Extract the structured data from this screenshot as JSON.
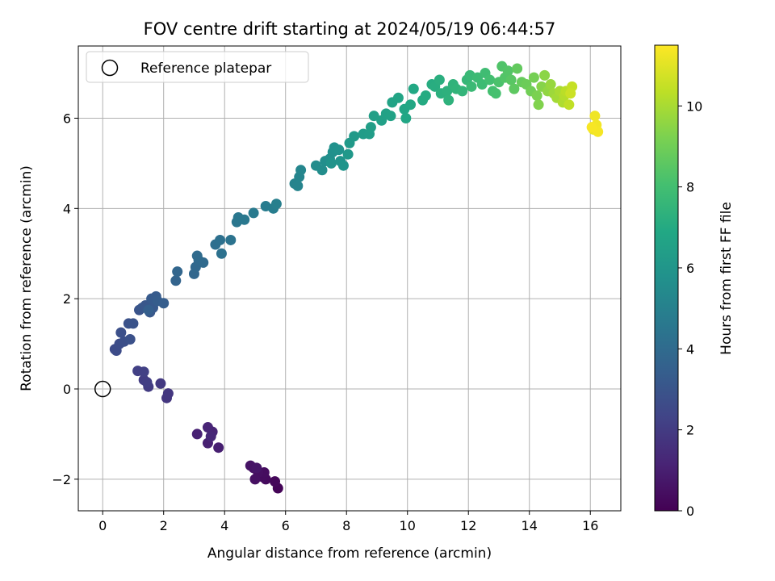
{
  "chart_data": {
    "type": "scatter",
    "title": "FOV centre drift starting at 2024/05/19 06:44:57",
    "xlabel": "Angular distance from reference (arcmin)",
    "ylabel": "Rotation from reference (arcmin)",
    "colorbar_label": "Hours from first FF file",
    "colormap": "viridis",
    "xlim": [
      -0.8,
      17.0
    ],
    "ylim": [
      -2.7,
      7.6
    ],
    "clim": [
      0,
      11.5
    ],
    "xticks": [
      0,
      2,
      4,
      6,
      8,
      10,
      12,
      14,
      16
    ],
    "yticks": [
      -2,
      0,
      2,
      4,
      6
    ],
    "cticks": [
      0,
      2,
      4,
      6,
      8,
      10
    ],
    "grid": true,
    "legend": {
      "position": "top-left",
      "entries": [
        {
          "label": "Reference platepar",
          "marker": "open-circle"
        }
      ]
    },
    "reference_point": {
      "x": 0,
      "y": 0
    },
    "points": [
      {
        "x": 5.75,
        "y": -2.2,
        "c": 0.1
      },
      {
        "x": 5.65,
        "y": -2.05,
        "c": 0.2
      },
      {
        "x": 5.35,
        "y": -2.0,
        "c": 0.3
      },
      {
        "x": 5.25,
        "y": -1.95,
        "c": 0.35
      },
      {
        "x": 5.3,
        "y": -1.85,
        "c": 0.4
      },
      {
        "x": 5.1,
        "y": -1.85,
        "c": 0.45
      },
      {
        "x": 5.0,
        "y": -2.0,
        "c": 0.5
      },
      {
        "x": 4.95,
        "y": -1.75,
        "c": 0.55
      },
      {
        "x": 4.85,
        "y": -1.7,
        "c": 0.6
      },
      {
        "x": 5.05,
        "y": -1.75,
        "c": 0.65
      },
      {
        "x": 3.8,
        "y": -1.3,
        "c": 1.0
      },
      {
        "x": 3.45,
        "y": -1.2,
        "c": 1.05
      },
      {
        "x": 3.1,
        "y": -1.0,
        "c": 1.1
      },
      {
        "x": 3.6,
        "y": -0.95,
        "c": 1.15
      },
      {
        "x": 3.45,
        "y": -0.85,
        "c": 1.2
      },
      {
        "x": 3.55,
        "y": -1.05,
        "c": 1.25
      },
      {
        "x": 2.1,
        "y": -0.2,
        "c": 1.8
      },
      {
        "x": 2.15,
        "y": -0.1,
        "c": 1.85
      },
      {
        "x": 1.9,
        "y": 0.12,
        "c": 1.9
      },
      {
        "x": 1.5,
        "y": 0.05,
        "c": 2.0
      },
      {
        "x": 1.35,
        "y": 0.2,
        "c": 2.05
      },
      {
        "x": 1.45,
        "y": 0.15,
        "c": 2.1
      },
      {
        "x": 1.15,
        "y": 0.4,
        "c": 2.15
      },
      {
        "x": 1.35,
        "y": 0.38,
        "c": 2.2
      },
      {
        "x": 0.4,
        "y": 0.88,
        "c": 2.6
      },
      {
        "x": 0.45,
        "y": 0.85,
        "c": 2.65
      },
      {
        "x": 0.55,
        "y": 1.0,
        "c": 2.7
      },
      {
        "x": 0.7,
        "y": 1.05,
        "c": 2.75
      },
      {
        "x": 0.6,
        "y": 1.25,
        "c": 2.8
      },
      {
        "x": 0.9,
        "y": 1.1,
        "c": 2.85
      },
      {
        "x": 0.85,
        "y": 1.45,
        "c": 2.9
      },
      {
        "x": 1.0,
        "y": 1.45,
        "c": 2.95
      },
      {
        "x": 1.2,
        "y": 1.75,
        "c": 3.0
      },
      {
        "x": 1.3,
        "y": 1.8,
        "c": 3.05
      },
      {
        "x": 1.4,
        "y": 1.85,
        "c": 3.1
      },
      {
        "x": 1.55,
        "y": 1.7,
        "c": 3.15
      },
      {
        "x": 1.65,
        "y": 1.8,
        "c": 3.2
      },
      {
        "x": 1.6,
        "y": 2.0,
        "c": 3.25
      },
      {
        "x": 1.75,
        "y": 2.05,
        "c": 3.3
      },
      {
        "x": 1.8,
        "y": 1.95,
        "c": 3.35
      },
      {
        "x": 2.0,
        "y": 1.9,
        "c": 3.4
      },
      {
        "x": 1.5,
        "y": 1.75,
        "c": 3.45
      },
      {
        "x": 2.4,
        "y": 2.4,
        "c": 3.7
      },
      {
        "x": 2.45,
        "y": 2.6,
        "c": 3.75
      },
      {
        "x": 3.0,
        "y": 2.55,
        "c": 3.8
      },
      {
        "x": 3.05,
        "y": 2.7,
        "c": 3.85
      },
      {
        "x": 3.15,
        "y": 2.85,
        "c": 3.9
      },
      {
        "x": 3.3,
        "y": 2.8,
        "c": 3.95
      },
      {
        "x": 3.1,
        "y": 2.95,
        "c": 4.0
      },
      {
        "x": 3.7,
        "y": 3.2,
        "c": 4.2
      },
      {
        "x": 3.85,
        "y": 3.3,
        "c": 4.25
      },
      {
        "x": 3.9,
        "y": 3.0,
        "c": 4.3
      },
      {
        "x": 4.2,
        "y": 3.3,
        "c": 4.35
      },
      {
        "x": 4.4,
        "y": 3.7,
        "c": 4.5
      },
      {
        "x": 4.45,
        "y": 3.8,
        "c": 4.55
      },
      {
        "x": 4.65,
        "y": 3.75,
        "c": 4.6
      },
      {
        "x": 4.95,
        "y": 3.9,
        "c": 4.7
      },
      {
        "x": 5.35,
        "y": 4.05,
        "c": 4.8
      },
      {
        "x": 5.6,
        "y": 4.0,
        "c": 4.85
      },
      {
        "x": 5.7,
        "y": 4.1,
        "c": 4.9
      },
      {
        "x": 6.3,
        "y": 4.55,
        "c": 5.1
      },
      {
        "x": 6.4,
        "y": 4.5,
        "c": 5.15
      },
      {
        "x": 6.45,
        "y": 4.7,
        "c": 5.2
      },
      {
        "x": 6.5,
        "y": 4.85,
        "c": 5.25
      },
      {
        "x": 7.0,
        "y": 4.95,
        "c": 5.5
      },
      {
        "x": 7.2,
        "y": 4.85,
        "c": 5.55
      },
      {
        "x": 7.3,
        "y": 5.05,
        "c": 5.6
      },
      {
        "x": 7.45,
        "y": 5.1,
        "c": 5.65
      },
      {
        "x": 7.55,
        "y": 5.25,
        "c": 5.7
      },
      {
        "x": 7.6,
        "y": 5.35,
        "c": 5.75
      },
      {
        "x": 7.75,
        "y": 5.3,
        "c": 5.8
      },
      {
        "x": 7.5,
        "y": 5.0,
        "c": 5.85
      },
      {
        "x": 7.8,
        "y": 5.05,
        "c": 5.9
      },
      {
        "x": 7.9,
        "y": 4.95,
        "c": 5.95
      },
      {
        "x": 8.05,
        "y": 5.2,
        "c": 6.1
      },
      {
        "x": 8.1,
        "y": 5.45,
        "c": 6.15
      },
      {
        "x": 8.25,
        "y": 5.6,
        "c": 6.2
      },
      {
        "x": 8.55,
        "y": 5.65,
        "c": 6.3
      },
      {
        "x": 8.75,
        "y": 5.65,
        "c": 6.35
      },
      {
        "x": 8.8,
        "y": 5.8,
        "c": 6.4
      },
      {
        "x": 8.9,
        "y": 6.05,
        "c": 6.45
      },
      {
        "x": 9.15,
        "y": 5.95,
        "c": 6.5
      },
      {
        "x": 9.3,
        "y": 6.1,
        "c": 6.55
      },
      {
        "x": 9.45,
        "y": 6.05,
        "c": 6.6
      },
      {
        "x": 9.5,
        "y": 6.35,
        "c": 6.65
      },
      {
        "x": 9.7,
        "y": 6.45,
        "c": 6.7
      },
      {
        "x": 9.9,
        "y": 6.2,
        "c": 6.75
      },
      {
        "x": 9.95,
        "y": 6.0,
        "c": 6.8
      },
      {
        "x": 10.1,
        "y": 6.3,
        "c": 6.85
      },
      {
        "x": 10.2,
        "y": 6.65,
        "c": 6.9
      },
      {
        "x": 10.5,
        "y": 6.4,
        "c": 7.0
      },
      {
        "x": 10.6,
        "y": 6.5,
        "c": 7.05
      },
      {
        "x": 10.8,
        "y": 6.75,
        "c": 7.1
      },
      {
        "x": 10.9,
        "y": 6.7,
        "c": 7.15
      },
      {
        "x": 11.05,
        "y": 6.85,
        "c": 7.2
      },
      {
        "x": 11.1,
        "y": 6.55,
        "c": 7.25
      },
      {
        "x": 11.3,
        "y": 6.6,
        "c": 7.3
      },
      {
        "x": 11.35,
        "y": 6.4,
        "c": 7.35
      },
      {
        "x": 11.5,
        "y": 6.75,
        "c": 7.4
      },
      {
        "x": 11.6,
        "y": 6.65,
        "c": 7.45
      },
      {
        "x": 11.8,
        "y": 6.6,
        "c": 7.5
      },
      {
        "x": 11.95,
        "y": 6.85,
        "c": 7.6
      },
      {
        "x": 12.05,
        "y": 6.95,
        "c": 7.7
      },
      {
        "x": 12.1,
        "y": 6.7,
        "c": 7.75
      },
      {
        "x": 12.3,
        "y": 6.9,
        "c": 7.8
      },
      {
        "x": 12.45,
        "y": 6.75,
        "c": 7.85
      },
      {
        "x": 12.55,
        "y": 7.0,
        "c": 7.9
      },
      {
        "x": 12.7,
        "y": 6.85,
        "c": 8.0
      },
      {
        "x": 12.8,
        "y": 6.6,
        "c": 8.05
      },
      {
        "x": 12.9,
        "y": 6.55,
        "c": 8.1
      },
      {
        "x": 13.0,
        "y": 6.8,
        "c": 8.2
      },
      {
        "x": 13.1,
        "y": 7.15,
        "c": 8.3
      },
      {
        "x": 13.2,
        "y": 6.9,
        "c": 8.35
      },
      {
        "x": 13.3,
        "y": 7.05,
        "c": 8.4
      },
      {
        "x": 13.4,
        "y": 6.85,
        "c": 8.5
      },
      {
        "x": 13.5,
        "y": 6.65,
        "c": 8.6
      },
      {
        "x": 13.6,
        "y": 7.1,
        "c": 8.7
      },
      {
        "x": 13.75,
        "y": 6.8,
        "c": 8.8
      },
      {
        "x": 13.9,
        "y": 6.75,
        "c": 8.9
      },
      {
        "x": 14.05,
        "y": 6.6,
        "c": 9.0
      },
      {
        "x": 14.15,
        "y": 6.9,
        "c": 9.1
      },
      {
        "x": 14.25,
        "y": 6.5,
        "c": 9.2
      },
      {
        "x": 14.3,
        "y": 6.3,
        "c": 9.3
      },
      {
        "x": 14.4,
        "y": 6.7,
        "c": 9.4
      },
      {
        "x": 14.5,
        "y": 6.95,
        "c": 9.5
      },
      {
        "x": 14.6,
        "y": 6.6,
        "c": 9.6
      },
      {
        "x": 14.7,
        "y": 6.75,
        "c": 9.7
      },
      {
        "x": 14.8,
        "y": 6.55,
        "c": 9.8
      },
      {
        "x": 14.9,
        "y": 6.45,
        "c": 9.9
      },
      {
        "x": 15.0,
        "y": 6.6,
        "c": 10.0
      },
      {
        "x": 15.1,
        "y": 6.35,
        "c": 10.1
      },
      {
        "x": 15.15,
        "y": 6.5,
        "c": 10.2
      },
      {
        "x": 15.2,
        "y": 6.6,
        "c": 10.3
      },
      {
        "x": 15.3,
        "y": 6.3,
        "c": 10.4
      },
      {
        "x": 15.4,
        "y": 6.7,
        "c": 10.5
      },
      {
        "x": 15.35,
        "y": 6.55,
        "c": 10.6
      },
      {
        "x": 16.1,
        "y": 5.75,
        "c": 11.2
      },
      {
        "x": 16.15,
        "y": 6.05,
        "c": 11.25
      },
      {
        "x": 16.2,
        "y": 5.85,
        "c": 11.3
      },
      {
        "x": 16.25,
        "y": 5.7,
        "c": 11.35
      },
      {
        "x": 16.05,
        "y": 5.8,
        "c": 11.4
      }
    ]
  }
}
